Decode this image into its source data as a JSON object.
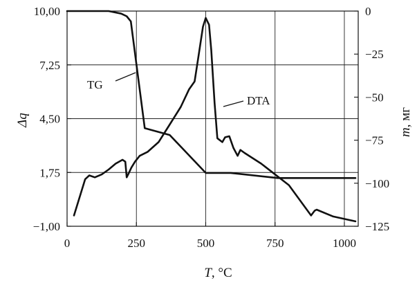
{
  "chart_data": {
    "type": "line",
    "xlabel": "T, °C",
    "ylabel_left": "Δq",
    "ylabel_right": "m, мг",
    "xlim": [
      0,
      1050
    ],
    "ylim_left": [
      -1.0,
      10.0
    ],
    "ylim_right": [
      -125,
      0
    ],
    "xticks": [
      0,
      250,
      500,
      750,
      1000
    ],
    "xtick_labels": [
      "0",
      "250",
      "500",
      "750",
      "1000"
    ],
    "yticks_left": [
      -1.0,
      1.75,
      4.5,
      7.25,
      10.0
    ],
    "ytick_labels_left": [
      "−1,00",
      "1,75",
      "4,50",
      "7,25",
      "10,00"
    ],
    "yticks_right": [
      0,
      -25,
      -50,
      -75,
      -100,
      -125
    ],
    "ytick_labels_right": [
      "0",
      "−25",
      "−50",
      "−75",
      "−100",
      "−125"
    ],
    "grid": true,
    "series": [
      {
        "name": "TG",
        "axis": "right",
        "x": [
          0,
          150,
          195,
          215,
          230,
          280,
          370,
          500,
          590,
          760,
          1040
        ],
        "y": [
          0,
          0,
          -1.5,
          -3,
          -6,
          -68,
          -72,
          -94,
          -94,
          -97,
          -97
        ]
      },
      {
        "name": "DTA",
        "axis": "left",
        "x": [
          25,
          65,
          80,
          100,
          125,
          150,
          175,
          200,
          210,
          215,
          222,
          232,
          245,
          262,
          290,
          330,
          370,
          410,
          440,
          460,
          475,
          490,
          500,
          512,
          520,
          532,
          542,
          560,
          570,
          585,
          600,
          615,
          625,
          640,
          700,
          800,
          880,
          893,
          900,
          960,
          1040
        ],
        "y": [
          -0.45,
          1.4,
          1.6,
          1.5,
          1.65,
          1.9,
          2.2,
          2.4,
          2.3,
          1.5,
          1.7,
          2.0,
          2.3,
          2.6,
          2.8,
          3.3,
          4.2,
          5.1,
          6.0,
          6.4,
          7.8,
          9.2,
          9.65,
          9.3,
          8.0,
          5.3,
          3.5,
          3.3,
          3.55,
          3.6,
          3.0,
          2.6,
          2.9,
          2.75,
          2.2,
          1.1,
          -0.45,
          -0.2,
          -0.15,
          -0.5,
          -0.75
        ]
      }
    ],
    "annotations": [
      {
        "text": "TG",
        "target_series": "TG"
      },
      {
        "text": "DTA",
        "target_series": "DTA"
      }
    ]
  }
}
